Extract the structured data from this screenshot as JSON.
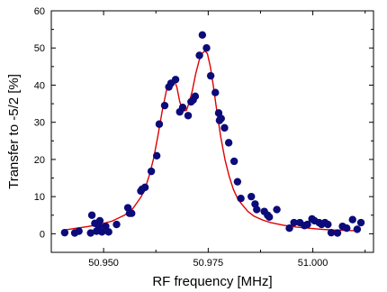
{
  "chart_data": {
    "type": "scatter",
    "title": "",
    "xlabel": "RF frequency [MHz]",
    "ylabel": "Transfer to -5/2 [%]",
    "xlim": [
      50.9375,
      51.0145
    ],
    "ylim": [
      -5,
      60
    ],
    "grid": false,
    "legend": "none",
    "x_ticks": [
      {
        "value": 50.95,
        "label": "50.950"
      },
      {
        "value": 50.975,
        "label": "50.975"
      },
      {
        "value": 51.0,
        "label": "51.000"
      }
    ],
    "y_ticks": [
      {
        "value": 0,
        "label": "0"
      },
      {
        "value": 10,
        "label": "10"
      },
      {
        "value": 20,
        "label": "20"
      },
      {
        "value": 30,
        "label": "30"
      },
      {
        "value": 40,
        "label": "40"
      },
      {
        "value": 50,
        "label": "50"
      },
      {
        "value": 60,
        "label": "60"
      }
    ],
    "marker_color": "#0b0b7a",
    "fit_color": "#e00000",
    "points": {
      "x": [
        50.9407,
        50.9431,
        50.9441,
        50.9469,
        50.9472,
        50.9479,
        50.9483,
        50.9489,
        50.9491,
        50.9496,
        50.9505,
        50.9512,
        50.9531,
        50.9558,
        50.9562,
        50.9567,
        50.9589,
        50.9592,
        50.9599,
        50.9614,
        50.9627,
        50.9633,
        50.9646,
        50.9656,
        50.9661,
        50.9672,
        50.9682,
        50.9689,
        50.9702,
        50.9709,
        50.9714,
        50.9719,
        50.9729,
        50.9736,
        50.9746,
        50.9756,
        50.9767,
        50.9775,
        50.9777,
        50.9781,
        50.9789,
        50.9799,
        50.9812,
        50.982,
        50.9828,
        50.9853,
        50.9862,
        50.9866,
        50.9884,
        50.9892,
        50.9896,
        50.9914,
        50.9944,
        50.9955,
        50.9969,
        50.998,
        50.9987,
        50.9998,
        51.0004,
        51.0015,
        51.0021,
        51.0029,
        51.0036,
        51.0044,
        51.0059,
        51.0071,
        51.0081,
        51.0095,
        51.0106,
        51.0115
      ],
      "y": [
        0.3,
        0.2,
        0.7,
        0.2,
        5.0,
        2.8,
        0.7,
        2.0,
        3.5,
        0.5,
        2.0,
        0.5,
        2.5,
        7.0,
        5.5,
        5.5,
        11.5,
        12.0,
        12.5,
        16.8,
        21.0,
        29.5,
        34.5,
        39.5,
        40.5,
        41.5,
        32.8,
        34.0,
        31.8,
        35.5,
        36.0,
        37.0,
        48.0,
        53.5,
        50.0,
        42.5,
        38.0,
        32.5,
        30.5,
        31.0,
        28.5,
        24.5,
        19.5,
        14.0,
        9.5,
        10.0,
        8.0,
        6.5,
        6.0,
        5.0,
        4.5,
        6.5,
        1.5,
        3.0,
        3.0,
        2.2,
        2.5,
        4.0,
        3.5,
        3.0,
        2.5,
        3.0,
        2.5,
        0.3,
        0.2,
        2.0,
        1.5,
        3.8,
        1.2,
        3.0
      ]
    },
    "fit": {
      "x": [
        50.9405,
        50.943,
        50.946,
        50.949,
        50.952,
        50.955,
        50.957,
        50.959,
        50.96,
        50.961,
        50.962,
        50.963,
        50.964,
        50.965,
        50.966,
        50.9668,
        50.9675,
        50.9682,
        50.969,
        50.9698,
        50.9705,
        50.9712,
        50.972,
        50.9728,
        50.9735,
        50.9742,
        50.9748,
        50.9755,
        50.9762,
        50.977,
        50.978,
        50.979,
        50.98,
        50.981,
        50.982,
        50.983,
        50.9845,
        50.986,
        50.988,
        50.99,
        50.993,
        50.996,
        50.999,
        51.002,
        51.005,
        51.008,
        51.011
      ],
      "y": [
        1.0,
        1.4,
        1.9,
        2.5,
        3.4,
        5.0,
        6.8,
        10.0,
        12.5,
        16.0,
        20.5,
        26.5,
        33.0,
        38.5,
        41.0,
        41.5,
        39.5,
        35.5,
        33.0,
        33.2,
        35.5,
        38.5,
        43.0,
        46.5,
        48.5,
        49.2,
        48.5,
        45.0,
        40.0,
        33.5,
        26.0,
        20.0,
        15.5,
        12.0,
        9.5,
        8.0,
        6.0,
        4.7,
        3.7,
        3.0,
        2.3,
        1.8,
        1.5,
        1.2,
        1.0,
        0.9,
        0.8
      ]
    }
  }
}
